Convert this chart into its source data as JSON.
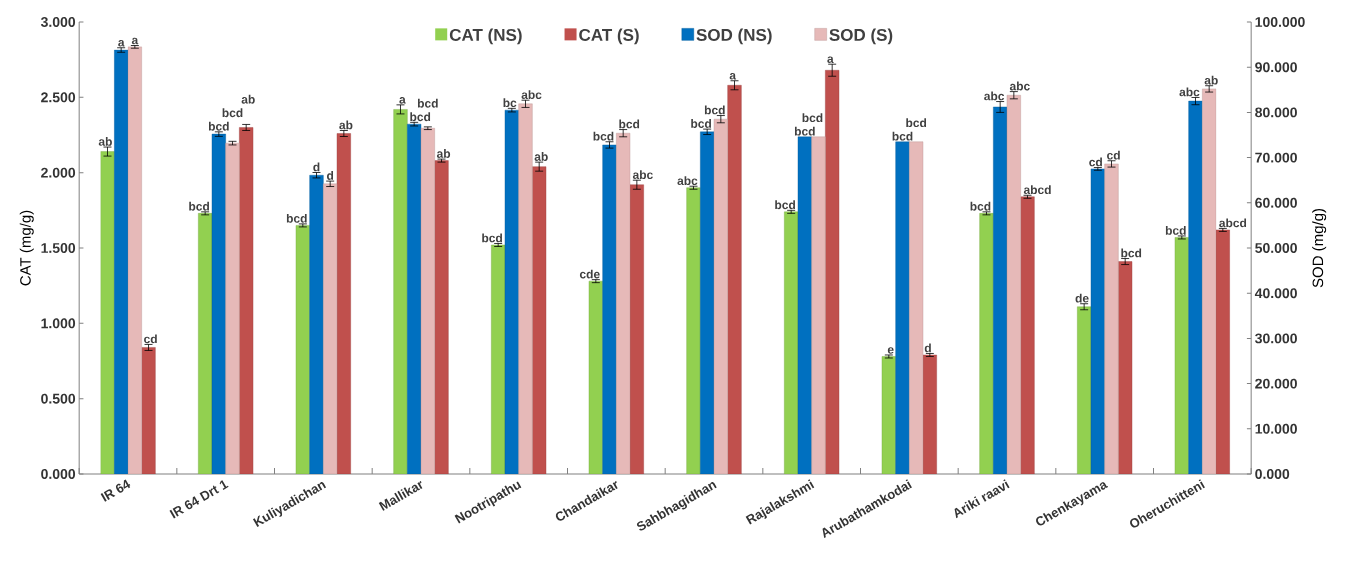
{
  "chart_data": {
    "type": "bar",
    "ylabel": "CAT (mg/g)",
    "y2label": "SOD (mg/g)",
    "categories": [
      "IR 64",
      "IR 64 Drt 1",
      "Kuliyadichan",
      "Mallikar",
      "Nootripathu",
      "Chandaikar",
      "Sahbhagidhan",
      "Rajalakshmi",
      "Arubathamkodai",
      "Ariki raavi",
      "Chenkayama",
      "Oheruchitteni"
    ],
    "series": [
      {
        "name": "CAT (NS)",
        "color": "#92d050",
        "values": [
          2.14,
          1.73,
          1.65,
          2.42,
          1.52,
          1.28,
          1.9,
          1.74,
          0.78,
          1.73,
          1.11,
          1.57
        ],
        "errors": [
          0.03,
          0.01,
          0.01,
          0.03,
          0.01,
          0.01,
          0.01,
          0.01,
          0.01,
          0.01,
          0.02,
          0.01
        ],
        "value_labels": [
          "ab",
          "bcd",
          "bcd",
          "a",
          "bcd",
          "cde",
          "abc",
          "bcd",
          "e",
          "bcd",
          "de",
          "bcd"
        ]
      },
      {
        "name": "CAT (S)",
        "color": "#c0504d",
        "values": [
          0.84,
          2.3,
          2.26,
          2.08,
          2.04,
          1.92,
          2.58,
          2.68,
          0.79,
          1.84,
          1.41,
          1.62
        ],
        "errors": [
          0.02,
          0.02,
          0.02,
          0.01,
          0.03,
          0.03,
          0.03,
          0.04,
          0.01,
          0.01,
          0.02,
          0.01
        ],
        "value_labels": [
          "cd",
          "ab",
          "ab",
          "ab",
          "ab",
          "abc",
          "a",
          "a",
          "d",
          "abcd",
          "bcd",
          "abcd"
        ]
      },
      {
        "name": "SOD (NS)",
        "color": "#0070c0",
        "values": [
          93.8,
          75.2,
          66.1,
          77.4,
          80.5,
          72.8,
          75.7,
          74.6,
          73.5,
          81.2,
          67.5,
          82.5
        ],
        "errors": [
          0.5,
          0.5,
          0.6,
          0.4,
          0.4,
          0.7,
          0.6,
          null,
          null,
          1.2,
          0.3,
          0.8
        ],
        "axis": "y2",
        "value_labels": [
          "a",
          "bcd",
          "d",
          "bcd",
          "bc",
          "bcd",
          "bcd",
          "bcd",
          "bcd",
          "abc",
          "cd",
          "abc"
        ]
      },
      {
        "name": "SOD (S)",
        "color": "#e6b9b8",
        "values": [
          94.5,
          73.2,
          64.2,
          76.5,
          81.9,
          75.4,
          78.5,
          74.6,
          73.5,
          83.8,
          68.6,
          85.2
        ],
        "errors": [
          0.3,
          0.4,
          0.6,
          0.3,
          0.8,
          0.8,
          0.8,
          null,
          null,
          0.8,
          0.7,
          0.7
        ],
        "axis": "y2",
        "value_labels": [
          "a",
          "bcd",
          "d",
          "bcd",
          "abc",
          "bcd",
          "bcd",
          "bcd",
          "bcd",
          "abc",
          "cd",
          "ab"
        ]
      }
    ],
    "ylim": [
      0,
      3
    ],
    "yticks": [
      {
        "value": 0,
        "label": "0.000"
      },
      {
        "value": 0.5,
        "label": "0.500"
      },
      {
        "value": 1,
        "label": "1.000"
      },
      {
        "value": 1.5,
        "label": "1.500"
      },
      {
        "value": 2,
        "label": "2.000"
      },
      {
        "value": 2.5,
        "label": "2.500"
      },
      {
        "value": 3,
        "label": "3.000"
      }
    ],
    "y2lim": [
      0,
      100
    ],
    "y2ticks": [
      {
        "value": 0,
        "label": "0.000"
      },
      {
        "value": 10,
        "label": "10.000"
      },
      {
        "value": 20,
        "label": "20.000"
      },
      {
        "value": 30,
        "label": "30.000"
      },
      {
        "value": 40,
        "label": "40.000"
      },
      {
        "value": 50,
        "label": "50.000"
      },
      {
        "value": 60,
        "label": "60.000"
      },
      {
        "value": 70,
        "label": "70.000"
      },
      {
        "value": 80,
        "label": "80.000"
      },
      {
        "value": 90,
        "label": "90.000"
      },
      {
        "value": 100,
        "label": "100.000"
      }
    ],
    "legend": "top",
    "grid": false
  }
}
